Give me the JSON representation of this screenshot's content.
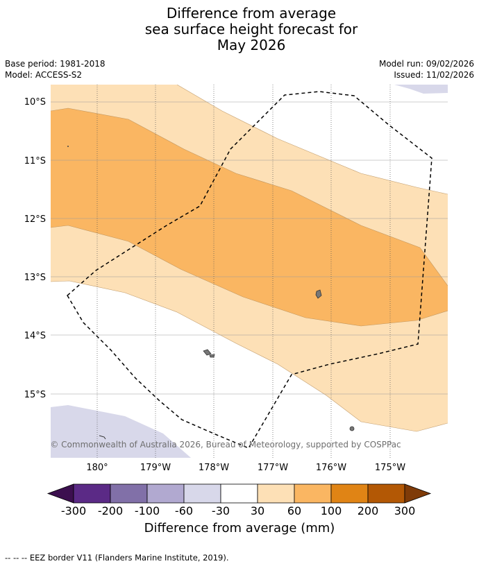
{
  "title": {
    "line1": "Difference from average",
    "line2": "sea surface height forecast for",
    "line3": "May 2026"
  },
  "meta": {
    "base_period": "Base period: 1981-2018",
    "model": "Model: ACCESS-S2",
    "model_run": "Model run: 09/02/2026",
    "issued": "Issued: 11/02/2026"
  },
  "map": {
    "lat_labels": [
      "10°S",
      "11°S",
      "12°S",
      "13°S",
      "14°S",
      "15°S"
    ],
    "lon_labels": [
      "180°",
      "179°W",
      "178°W",
      "177°W",
      "176°W",
      "175°W"
    ],
    "credit": "© Commonwealth of Australia 2026, Bureau of Meteorology, supported by COSPPac"
  },
  "colors": {
    "minus_300_200": "#5b2a86",
    "minus_200_100": "#8170a8",
    "minus_100_60": "#b1a9d0",
    "minus_60_30": "#d8d8ea",
    "minus_30_30": "#ffffff",
    "plus_30_60": "#fde0b6",
    "plus_60_100": "#fab662",
    "plus_100_200": "#e08415",
    "plus_200_300": "#b35805",
    "below_min": "#3c0f4f",
    "above_max": "#7f3b08"
  },
  "colorbar": {
    "ticks": [
      "-300",
      "-200",
      "-100",
      "-60",
      "-30",
      "30",
      "60",
      "100",
      "200",
      "300"
    ],
    "label": "Difference from average (mm)"
  },
  "legend": {
    "eez_symbol": "-- -- --",
    "eez_text": "EEZ border V11 (Flanders Marine Institute, 2019)."
  }
}
